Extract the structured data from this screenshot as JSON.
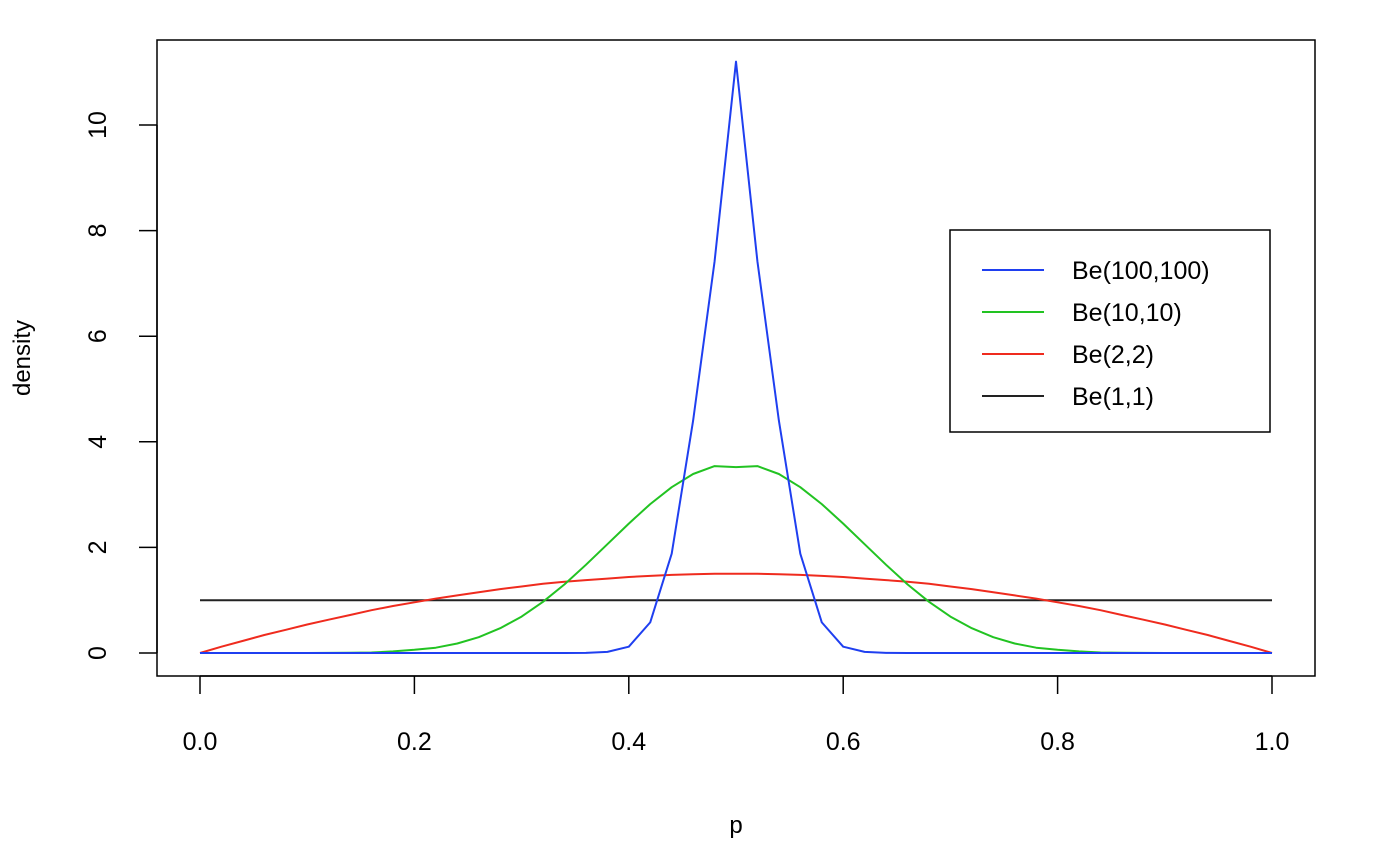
{
  "chart_data": {
    "type": "line",
    "title": "",
    "xlabel": "p",
    "ylabel": "density",
    "xlim": [
      0.0,
      1.0
    ],
    "ylim": [
      0,
      11.2
    ],
    "xticks": [
      0.0,
      0.2,
      0.4,
      0.6,
      0.8,
      1.0
    ],
    "xtick_labels": [
      "0.0",
      "0.2",
      "0.4",
      "0.6",
      "0.8",
      "1.0"
    ],
    "yticks": [
      0,
      2,
      4,
      6,
      8,
      10
    ],
    "ytick_labels": [
      "0",
      "2",
      "4",
      "6",
      "8",
      "10"
    ],
    "grid": false,
    "legend_position": "right",
    "x": [
      0.0,
      0.02,
      0.04,
      0.06,
      0.08,
      0.1,
      0.12,
      0.14,
      0.16,
      0.18,
      0.2,
      0.22,
      0.24,
      0.26,
      0.28,
      0.3,
      0.32,
      0.34,
      0.36,
      0.38,
      0.4,
      0.42,
      0.44,
      0.46,
      0.48,
      0.5,
      0.52,
      0.54,
      0.56,
      0.58,
      0.6,
      0.62,
      0.64,
      0.66,
      0.68,
      0.7,
      0.72,
      0.74,
      0.76,
      0.78,
      0.8,
      0.82,
      0.84,
      0.86,
      0.88,
      0.9,
      0.92,
      0.94,
      0.96,
      0.98,
      1.0
    ],
    "series": [
      {
        "name": "Be(100,100)",
        "color": "#1f3ff0",
        "values": [
          0,
          0,
          0,
          0,
          0,
          0,
          0,
          0,
          0,
          0,
          0,
          0,
          0,
          0,
          0,
          0,
          0,
          0,
          0.001,
          0.02,
          0.12,
          0.58,
          1.88,
          4.4,
          7.42,
          11.2,
          7.42,
          4.4,
          1.88,
          0.58,
          0.12,
          0.02,
          0.001,
          0,
          0,
          0,
          0,
          0,
          0,
          0,
          0,
          0,
          0,
          0,
          0,
          0,
          0,
          0,
          0,
          0,
          0
        ]
      },
      {
        "name": "Be(10,10)",
        "color": "#22c322",
        "values": [
          0,
          0,
          0,
          0,
          0,
          0,
          0.001,
          0.003,
          0.01,
          0.03,
          0.06,
          0.1,
          0.18,
          0.3,
          0.47,
          0.69,
          0.97,
          1.3,
          1.67,
          2.06,
          2.45,
          2.82,
          3.14,
          3.39,
          3.54,
          3.52,
          3.54,
          3.39,
          3.14,
          2.82,
          2.45,
          2.06,
          1.67,
          1.3,
          0.97,
          0.69,
          0.47,
          0.3,
          0.18,
          0.1,
          0.06,
          0.03,
          0.01,
          0.003,
          0.001,
          0,
          0,
          0,
          0,
          0,
          0
        ]
      },
      {
        "name": "Be(2,2)",
        "color": "#ef2b1e",
        "values": [
          0,
          0.12,
          0.23,
          0.34,
          0.44,
          0.54,
          0.63,
          0.72,
          0.81,
          0.89,
          0.96,
          1.03,
          1.09,
          1.15,
          1.21,
          1.26,
          1.31,
          1.35,
          1.38,
          1.41,
          1.44,
          1.46,
          1.48,
          1.49,
          1.5,
          1.5,
          1.5,
          1.49,
          1.48,
          1.46,
          1.44,
          1.41,
          1.38,
          1.35,
          1.31,
          1.26,
          1.21,
          1.15,
          1.09,
          1.03,
          0.96,
          0.89,
          0.81,
          0.72,
          0.63,
          0.54,
          0.44,
          0.34,
          0.23,
          0.12,
          0
        ]
      },
      {
        "name": "Be(1,1)",
        "color": "#222222",
        "values": [
          1,
          1,
          1,
          1,
          1,
          1,
          1,
          1,
          1,
          1,
          1,
          1,
          1,
          1,
          1,
          1,
          1,
          1,
          1,
          1,
          1,
          1,
          1,
          1,
          1,
          1,
          1,
          1,
          1,
          1,
          1,
          1,
          1,
          1,
          1,
          1,
          1,
          1,
          1,
          1,
          1,
          1,
          1,
          1,
          1,
          1,
          1,
          1,
          1,
          1,
          1
        ]
      }
    ]
  }
}
